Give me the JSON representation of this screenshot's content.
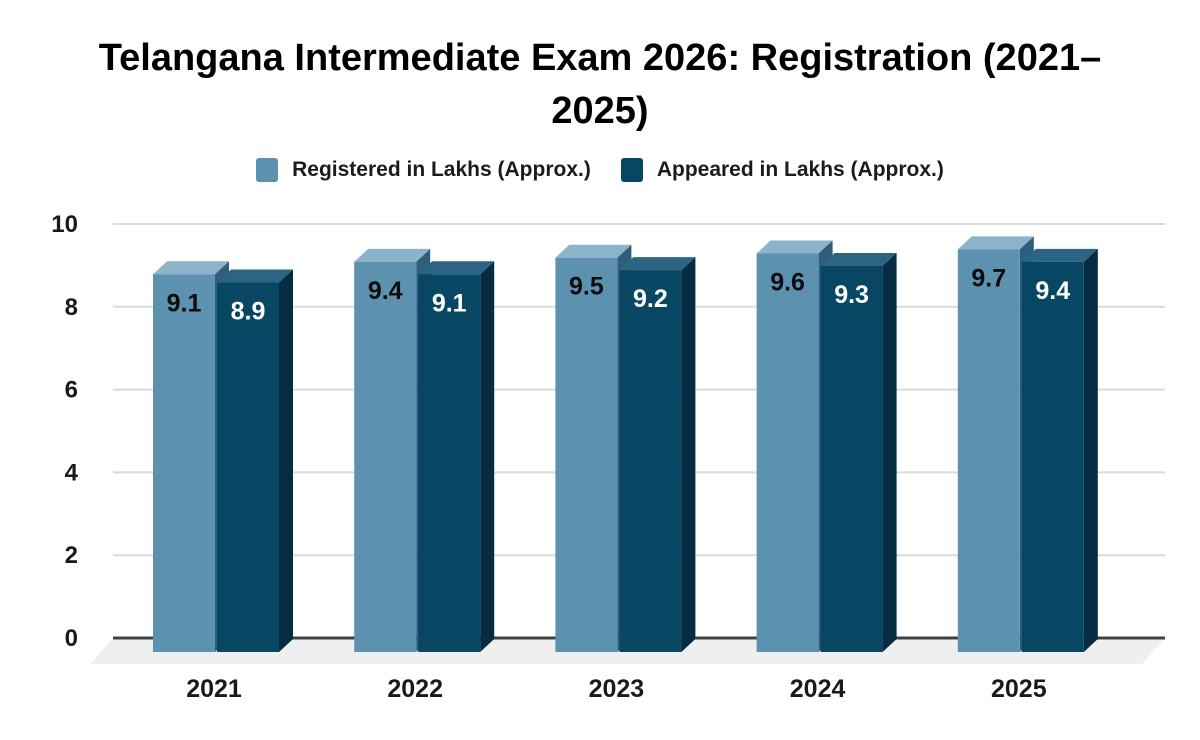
{
  "title": {
    "text": "Telangana Intermediate Exam 2026: Registration (2021–2025)",
    "line1": "Telangana Intermediate Exam 2026: Registration (2021–",
    "line2": "2025)"
  },
  "legend": {
    "items": [
      {
        "label": "Registered in Lakhs (Approx.)",
        "color": "#5C92B0"
      },
      {
        "label": "Appeared in Lakhs (Approx.)",
        "color": "#084763"
      }
    ]
  },
  "chart_data": {
    "type": "bar",
    "style": "3d-grouped-bars",
    "categories": [
      "2021",
      "2022",
      "2023",
      "2024",
      "2025"
    ],
    "series": [
      {
        "name": "Registered in Lakhs (Approx.)",
        "values": [
          9.1,
          9.4,
          9.5,
          9.6,
          9.7
        ],
        "color": "#5C92B0",
        "top_color": "#8BB3C9",
        "side_color": "#2F5E7C",
        "label_color": "#0D0D0D"
      },
      {
        "name": "Appeared in Lakhs (Approx.)",
        "values": [
          8.9,
          9.1,
          9.2,
          9.3,
          9.4
        ],
        "color": "#084763",
        "top_color": "#2B6583",
        "side_color": "#052C42",
        "label_color": "#FFFFFF"
      }
    ],
    "title": "Telangana Intermediate Exam 2026: Registration (2021–2025)",
    "xlabel": "",
    "ylabel": "",
    "ylim": [
      0,
      10
    ],
    "yticks": [
      0,
      2,
      4,
      6,
      8,
      10
    ],
    "grid": true,
    "legend_position": "top",
    "value_labels": true
  },
  "colors": {
    "background": "#FFFFFF",
    "gridline": "#DADADA",
    "axis_line": "#404040",
    "floor": "#EFEFEF",
    "tick_text": "#1A1A1A",
    "category_text": "#1A1A1A",
    "title_text": "#000000"
  }
}
